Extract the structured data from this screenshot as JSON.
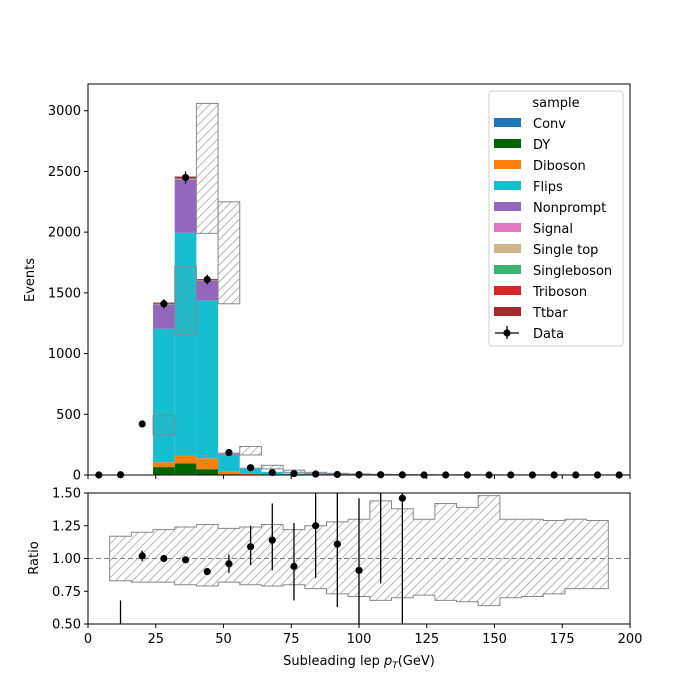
{
  "chart_data": {
    "type": "bar",
    "stacked": true,
    "bin_edges": [
      0,
      8,
      16,
      24,
      32,
      40,
      48,
      56,
      64,
      72,
      80,
      88,
      96,
      104,
      112,
      120,
      128,
      136,
      144,
      152,
      160,
      168,
      176,
      184,
      192,
      200
    ],
    "main": {
      "ylabel": "Events",
      "ylim": [
        0,
        3220
      ],
      "yticks": [
        0,
        500,
        1000,
        1500,
        2000,
        2500,
        3000
      ],
      "stack": [
        {
          "name": "Conv",
          "color": "#1f77b4",
          "values": [
            0,
            0,
            0,
            5,
            5,
            3,
            2,
            0,
            0,
            0,
            0,
            0,
            0,
            0,
            0,
            0,
            0,
            0,
            0,
            0,
            0,
            0,
            0,
            0,
            0
          ]
        },
        {
          "name": "DY",
          "color": "#006400",
          "values": [
            0,
            0,
            0,
            60,
            90,
            45,
            5,
            2,
            0,
            0,
            0,
            0,
            0,
            0,
            0,
            0,
            0,
            0,
            0,
            0,
            0,
            0,
            0,
            0,
            0
          ]
        },
        {
          "name": "Diboson",
          "color": "#ff7f0e",
          "values": [
            0,
            0,
            0,
            40,
            70,
            90,
            20,
            8,
            4,
            2,
            1,
            1,
            0,
            0,
            0,
            0,
            0,
            0,
            0,
            0,
            0,
            0,
            0,
            0,
            0
          ]
        },
        {
          "name": "Flips",
          "color": "#17becf",
          "values": [
            0,
            0,
            0,
            1100,
            1830,
            1300,
            140,
            45,
            20,
            10,
            6,
            4,
            3,
            2,
            1,
            1,
            0,
            0,
            0,
            0,
            0,
            0,
            0,
            0,
            0
          ]
        },
        {
          "name": "Nonprompt",
          "color": "#9467bd",
          "values": [
            0,
            0,
            0,
            200,
            440,
            160,
            12,
            4,
            2,
            1,
            1,
            0,
            0,
            0,
            0,
            0,
            0,
            0,
            0,
            0,
            0,
            0,
            0,
            0,
            0
          ]
        },
        {
          "name": "Signal",
          "color": "#e377c2",
          "values": [
            0,
            0,
            0,
            0,
            0,
            0,
            0,
            0,
            0,
            0,
            0,
            0,
            0,
            0,
            0,
            0,
            0,
            0,
            0,
            0,
            0,
            0,
            0,
            0,
            0
          ]
        },
        {
          "name": "Single top",
          "color": "#d2b48c",
          "values": [
            0,
            0,
            0,
            2,
            3,
            2,
            1,
            0,
            0,
            0,
            0,
            0,
            0,
            0,
            0,
            0,
            0,
            0,
            0,
            0,
            0,
            0,
            0,
            0,
            0
          ]
        },
        {
          "name": "Singleboson",
          "color": "#3cb371",
          "values": [
            0,
            0,
            0,
            3,
            5,
            3,
            1,
            0,
            0,
            0,
            0,
            0,
            0,
            0,
            0,
            0,
            0,
            0,
            0,
            0,
            0,
            0,
            0,
            0,
            0
          ]
        },
        {
          "name": "Triboson",
          "color": "#d62728",
          "values": [
            0,
            0,
            0,
            0,
            0,
            0,
            0,
            0,
            0,
            0,
            0,
            0,
            0,
            0,
            0,
            0,
            0,
            0,
            0,
            0,
            0,
            0,
            0,
            0,
            0
          ]
        },
        {
          "name": "Ttbar",
          "color": "#a52a2a",
          "values": [
            0,
            0,
            0,
            10,
            15,
            10,
            2,
            1,
            0,
            0,
            0,
            0,
            0,
            0,
            0,
            0,
            0,
            0,
            0,
            0,
            0,
            0,
            0,
            0,
            0
          ]
        }
      ],
      "unc_bands": [
        {
          "lo": 0,
          "hi": 0
        },
        {
          "lo": 0,
          "hi": 0
        },
        {
          "lo": 0,
          "hi": 0
        },
        {
          "lo": 330,
          "hi": 490
        },
        {
          "lo": 1160,
          "hi": 1720
        },
        {
          "lo": 1990,
          "hi": 3060
        },
        {
          "lo": 1410,
          "hi": 2250
        },
        {
          "lo": 165,
          "hi": 235
        },
        {
          "lo": 50,
          "hi": 80
        },
        {
          "lo": 22,
          "hi": 40
        },
        {
          "lo": 12,
          "hi": 22
        },
        {
          "lo": 6,
          "hi": 14
        },
        {
          "lo": 4,
          "hi": 9
        },
        {
          "lo": 2,
          "hi": 6
        },
        {
          "lo": 1,
          "hi": 4
        },
        {
          "lo": 0,
          "hi": 3
        },
        {
          "lo": 0,
          "hi": 2
        },
        {
          "lo": 0,
          "hi": 2
        },
        {
          "lo": 0,
          "hi": 1
        },
        {
          "lo": 0,
          "hi": 1
        },
        {
          "lo": 0,
          "hi": 1
        },
        {
          "lo": 0,
          "hi": 1
        },
        {
          "lo": 0,
          "hi": 1
        },
        {
          "lo": 0,
          "hi": 1
        },
        {
          "lo": 0,
          "hi": 1
        }
      ],
      "data": {
        "name": "Data",
        "x": [
          4,
          12,
          20,
          28,
          36,
          44,
          52,
          60,
          68,
          76,
          84,
          92,
          100,
          108,
          116,
          124,
          132,
          140,
          148,
          156,
          164,
          172,
          180,
          188,
          196
        ],
        "y": [
          0,
          2,
          420,
          1410,
          2450,
          1610,
          185,
          60,
          20,
          12,
          8,
          4,
          3,
          2,
          1,
          0,
          0,
          0,
          0,
          0,
          0,
          0,
          0,
          0,
          0
        ],
        "err": [
          0,
          1.4,
          20,
          38,
          50,
          40,
          14,
          8,
          4,
          3,
          3,
          2,
          2,
          1.4,
          1,
          0,
          0,
          0,
          0,
          0,
          0,
          0,
          0,
          0,
          0
        ]
      }
    },
    "ratio": {
      "ylabel": "Ratio",
      "ylim": [
        0.5,
        1.5
      ],
      "yticks": [
        "0.50",
        "0.75",
        "1.00",
        "1.25",
        "1.50"
      ],
      "reference": 1.0,
      "band_bins": [
        {
          "x0": 8,
          "x1": 16,
          "lo": 0.83,
          "hi": 1.17
        },
        {
          "x0": 16,
          "x1": 24,
          "lo": 0.82,
          "hi": 1.2
        },
        {
          "x0": 24,
          "x1": 32,
          "lo": 0.82,
          "hi": 1.22
        },
        {
          "x0": 32,
          "x1": 40,
          "lo": 0.8,
          "hi": 1.24
        },
        {
          "x0": 40,
          "x1": 48,
          "lo": 0.79,
          "hi": 1.26
        },
        {
          "x0": 48,
          "x1": 56,
          "lo": 0.82,
          "hi": 1.23
        },
        {
          "x0": 56,
          "x1": 64,
          "lo": 0.8,
          "hi": 1.24
        },
        {
          "x0": 64,
          "x1": 72,
          "lo": 0.79,
          "hi": 1.26
        },
        {
          "x0": 72,
          "x1": 80,
          "lo": 0.8,
          "hi": 1.22
        },
        {
          "x0": 80,
          "x1": 88,
          "lo": 0.77,
          "hi": 1.25
        },
        {
          "x0": 88,
          "x1": 96,
          "lo": 0.73,
          "hi": 1.28
        },
        {
          "x0": 96,
          "x1": 104,
          "lo": 0.71,
          "hi": 1.3
        },
        {
          "x0": 104,
          "x1": 112,
          "lo": 0.68,
          "hi": 1.44
        },
        {
          "x0": 112,
          "x1": 120,
          "lo": 0.7,
          "hi": 1.38
        },
        {
          "x0": 120,
          "x1": 128,
          "lo": 0.72,
          "hi": 1.3
        },
        {
          "x0": 128,
          "x1": 136,
          "lo": 0.68,
          "hi": 1.42
        },
        {
          "x0": 136,
          "x1": 144,
          "lo": 0.67,
          "hi": 1.39
        },
        {
          "x0": 144,
          "x1": 152,
          "lo": 0.64,
          "hi": 1.48
        },
        {
          "x0": 152,
          "x1": 160,
          "lo": 0.7,
          "hi": 1.3
        },
        {
          "x0": 160,
          "x1": 168,
          "lo": 0.71,
          "hi": 1.3
        },
        {
          "x0": 168,
          "x1": 176,
          "lo": 0.73,
          "hi": 1.29
        },
        {
          "x0": 176,
          "x1": 184,
          "lo": 0.77,
          "hi": 1.3
        },
        {
          "x0": 184,
          "x1": 192,
          "lo": 0.77,
          "hi": 1.29
        }
      ],
      "points": [
        {
          "x": 12,
          "y": 0.5,
          "elo": 0.1,
          "ehi": 0.18,
          "marker": false
        },
        {
          "x": 20,
          "y": 1.02,
          "elo": 0.04,
          "ehi": 0.04,
          "marker": true
        },
        {
          "x": 28,
          "y": 1.0,
          "elo": 0.02,
          "ehi": 0.02,
          "marker": true
        },
        {
          "x": 36,
          "y": 0.99,
          "elo": 0.02,
          "ehi": 0.02,
          "marker": true
        },
        {
          "x": 44,
          "y": 0.9,
          "elo": 0.02,
          "ehi": 0.02,
          "marker": true
        },
        {
          "x": 52,
          "y": 0.96,
          "elo": 0.07,
          "ehi": 0.07,
          "marker": true
        },
        {
          "x": 60,
          "y": 1.09,
          "elo": 0.14,
          "ehi": 0.16,
          "marker": true
        },
        {
          "x": 68,
          "y": 1.14,
          "elo": 0.23,
          "ehi": 0.28,
          "marker": true
        },
        {
          "x": 76,
          "y": 0.94,
          "elo": 0.26,
          "ehi": 0.33,
          "marker": true
        },
        {
          "x": 84,
          "y": 1.25,
          "elo": 0.4,
          "ehi": 0.4,
          "marker": true
        },
        {
          "x": 92,
          "y": 1.11,
          "elo": 0.48,
          "ehi": 0.5,
          "marker": true
        },
        {
          "x": 100,
          "y": 0.91,
          "elo": 0.5,
          "ehi": 0.55,
          "marker": true
        },
        {
          "x": 108,
          "y": 1.5,
          "elo": 0.69,
          "ehi": 0.1,
          "marker": false
        },
        {
          "x": 116,
          "y": 1.46,
          "elo": 0.96,
          "ehi": 0.1,
          "marker": true
        }
      ]
    },
    "x_axis": {
      "xlabel": "Subleading lep",
      "xlabel_symbol": "p",
      "xlabel_sub": "T",
      "xlabel_unit": "(GeV)",
      "xlim": [
        0,
        200
      ],
      "xticks": [
        0,
        25,
        50,
        75,
        100,
        125,
        150,
        175,
        200
      ]
    },
    "legend": {
      "title": "sample",
      "placement": "upper right",
      "data_label": "Data"
    }
  }
}
